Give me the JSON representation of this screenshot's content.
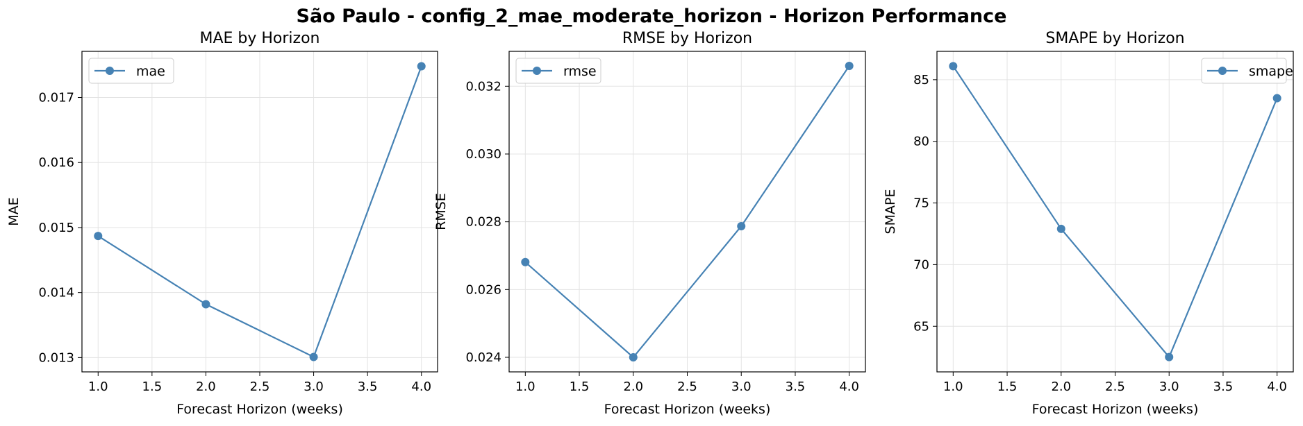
{
  "suptitle": "São Paulo - config_2_mae_moderate_horizon - Horizon Performance",
  "colors": {
    "line": "#4682b4",
    "grid": "#e3e3e3",
    "legend_border": "#cccccc"
  },
  "chart_data": [
    {
      "type": "line",
      "title": "MAE by Horizon",
      "xlabel": "Forecast Horizon (weeks)",
      "ylabel": "MAE",
      "x": [
        1.0,
        2.0,
        3.0,
        4.0
      ],
      "series": [
        {
          "name": "mae",
          "values": [
            0.01487,
            0.01382,
            0.01301,
            0.01748
          ]
        }
      ],
      "xlim": [
        0.85,
        4.15
      ],
      "ylim": [
        0.01278,
        0.01771
      ],
      "xticks": [
        1.0,
        1.5,
        2.0,
        2.5,
        3.0,
        3.5,
        4.0
      ],
      "xtick_labels": [
        "1.0",
        "1.5",
        "2.0",
        "2.5",
        "3.0",
        "3.5",
        "4.0"
      ],
      "yticks": [
        0.013,
        0.014,
        0.015,
        0.016,
        0.017
      ],
      "ytick_labels": [
        "0.013",
        "0.014",
        "0.015",
        "0.016",
        "0.017"
      ],
      "grid": true,
      "legend": "upper-left"
    },
    {
      "type": "line",
      "title": "RMSE by Horizon",
      "xlabel": "Forecast Horizon (weeks)",
      "ylabel": "RMSE",
      "x": [
        1.0,
        2.0,
        3.0,
        4.0
      ],
      "series": [
        {
          "name": "rmse",
          "values": [
            0.02681,
            0.024,
            0.02787,
            0.0326
          ]
        }
      ],
      "xlim": [
        0.85,
        4.15
      ],
      "ylim": [
        0.02357,
        0.03303
      ],
      "xticks": [
        1.0,
        1.5,
        2.0,
        2.5,
        3.0,
        3.5,
        4.0
      ],
      "xtick_labels": [
        "1.0",
        "1.5",
        "2.0",
        "2.5",
        "3.0",
        "3.5",
        "4.0"
      ],
      "yticks": [
        0.024,
        0.026,
        0.028,
        0.03,
        0.032
      ],
      "ytick_labels": [
        "0.024",
        "0.026",
        "0.028",
        "0.030",
        "0.032"
      ],
      "grid": true,
      "legend": "upper-left"
    },
    {
      "type": "line",
      "title": "SMAPE by Horizon",
      "xlabel": "Forecast Horizon (weeks)",
      "ylabel": "SMAPE",
      "x": [
        1.0,
        2.0,
        3.0,
        4.0
      ],
      "series": [
        {
          "name": "smape",
          "values": [
            86.1,
            72.9,
            62.5,
            83.5
          ]
        }
      ],
      "xlim": [
        0.85,
        4.15
      ],
      "ylim": [
        61.3,
        87.3
      ],
      "xticks": [
        1.0,
        1.5,
        2.0,
        2.5,
        3.0,
        3.5,
        4.0
      ],
      "xtick_labels": [
        "1.0",
        "1.5",
        "2.0",
        "2.5",
        "3.0",
        "3.5",
        "4.0"
      ],
      "yticks": [
        65,
        70,
        75,
        80,
        85
      ],
      "ytick_labels": [
        "65",
        "70",
        "75",
        "80",
        "85"
      ],
      "grid": true,
      "legend": "upper-right"
    }
  ]
}
